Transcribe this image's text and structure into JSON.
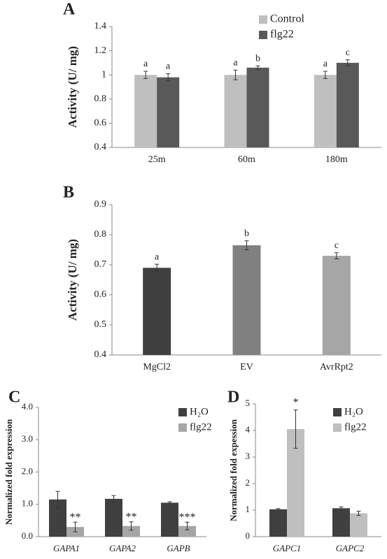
{
  "chart_data": [
    {
      "type": "bar",
      "panel_label": "A",
      "y_label": "Activity (U/ mg)",
      "categories": [
        "25m",
        "60m",
        "180m"
      ],
      "series": [
        {
          "name": "Control",
          "color": "#bfbfbf",
          "values": [
            1.0,
            1.0,
            1.0
          ],
          "errors": [
            0.03,
            0.04,
            0.03
          ],
          "annotations": [
            "a",
            "a",
            "a"
          ]
        },
        {
          "name": "flg22",
          "color": "#595959",
          "values": [
            0.98,
            1.06,
            1.1
          ],
          "errors": [
            0.03,
            0.015,
            0.025
          ],
          "annotations": [
            "a",
            "b",
            "c"
          ]
        }
      ],
      "ylim": [
        0.4,
        1.4
      ],
      "yticks": [
        0.4,
        0.6,
        0.8,
        1,
        1.2,
        1.4
      ],
      "legend": "upper right"
    },
    {
      "type": "bar",
      "panel_label": "B",
      "y_label": "Activity (U/ mg)",
      "categories": [
        "MgCl2",
        "EV",
        "AvrRpt2"
      ],
      "series": [
        {
          "colors": [
            "#404040",
            "#808080",
            "#a6a6a6"
          ],
          "values": [
            0.69,
            0.765,
            0.73
          ],
          "errors": [
            0.012,
            0.015,
            0.01
          ],
          "annotations": [
            "a",
            "b",
            "c"
          ]
        }
      ],
      "ylim": [
        0.4,
        0.9
      ],
      "yticks": [
        0.4,
        0.5,
        0.6,
        0.7,
        0.8,
        0.9
      ]
    },
    {
      "type": "bar",
      "panel_label": "C",
      "y_label": "Normalized fold expression",
      "category_style": "italic",
      "categories": [
        "GAPA1",
        "GAPA2",
        "GAPB"
      ],
      "series": [
        {
          "name": "H₂O",
          "color": "#404040",
          "values": [
            1.15,
            1.17,
            1.05
          ],
          "errors": [
            0.25,
            0.1,
            0.03
          ]
        },
        {
          "name": "flg22",
          "color": "#a6a6a6",
          "values": [
            0.3,
            0.33,
            0.33
          ],
          "errors": [
            0.15,
            0.13,
            0.12
          ],
          "annotations": [
            "**",
            "**",
            "***"
          ]
        }
      ],
      "ylim": [
        0,
        4
      ],
      "yticks": [
        {
          "value": 0,
          "label": "0.0"
        },
        {
          "value": 1,
          "label": "1.0"
        },
        {
          "value": 2,
          "label": "2.0"
        },
        {
          "value": 3,
          "label": "3.0"
        },
        {
          "value": 4,
          "label": "4.0"
        }
      ],
      "legend": "upper right"
    },
    {
      "type": "bar",
      "panel_label": "D",
      "y_label": "Normalized fold expession",
      "category_style": "italic",
      "categories": [
        "GAPC1",
        "GAPC2"
      ],
      "series": [
        {
          "name": "H₂O",
          "color": "#404040",
          "values": [
            1.03,
            1.07
          ],
          "errors": [
            0.03,
            0.05
          ]
        },
        {
          "name": "flg22",
          "color": "#bfbfbf",
          "values": [
            4.05,
            0.88
          ],
          "errors": [
            0.72,
            0.08
          ],
          "annotations": [
            "*",
            null
          ]
        }
      ],
      "ylim": [
        0,
        5
      ],
      "yticks": [
        0,
        1,
        2,
        3,
        4,
        5
      ],
      "legend": "upper right"
    }
  ]
}
